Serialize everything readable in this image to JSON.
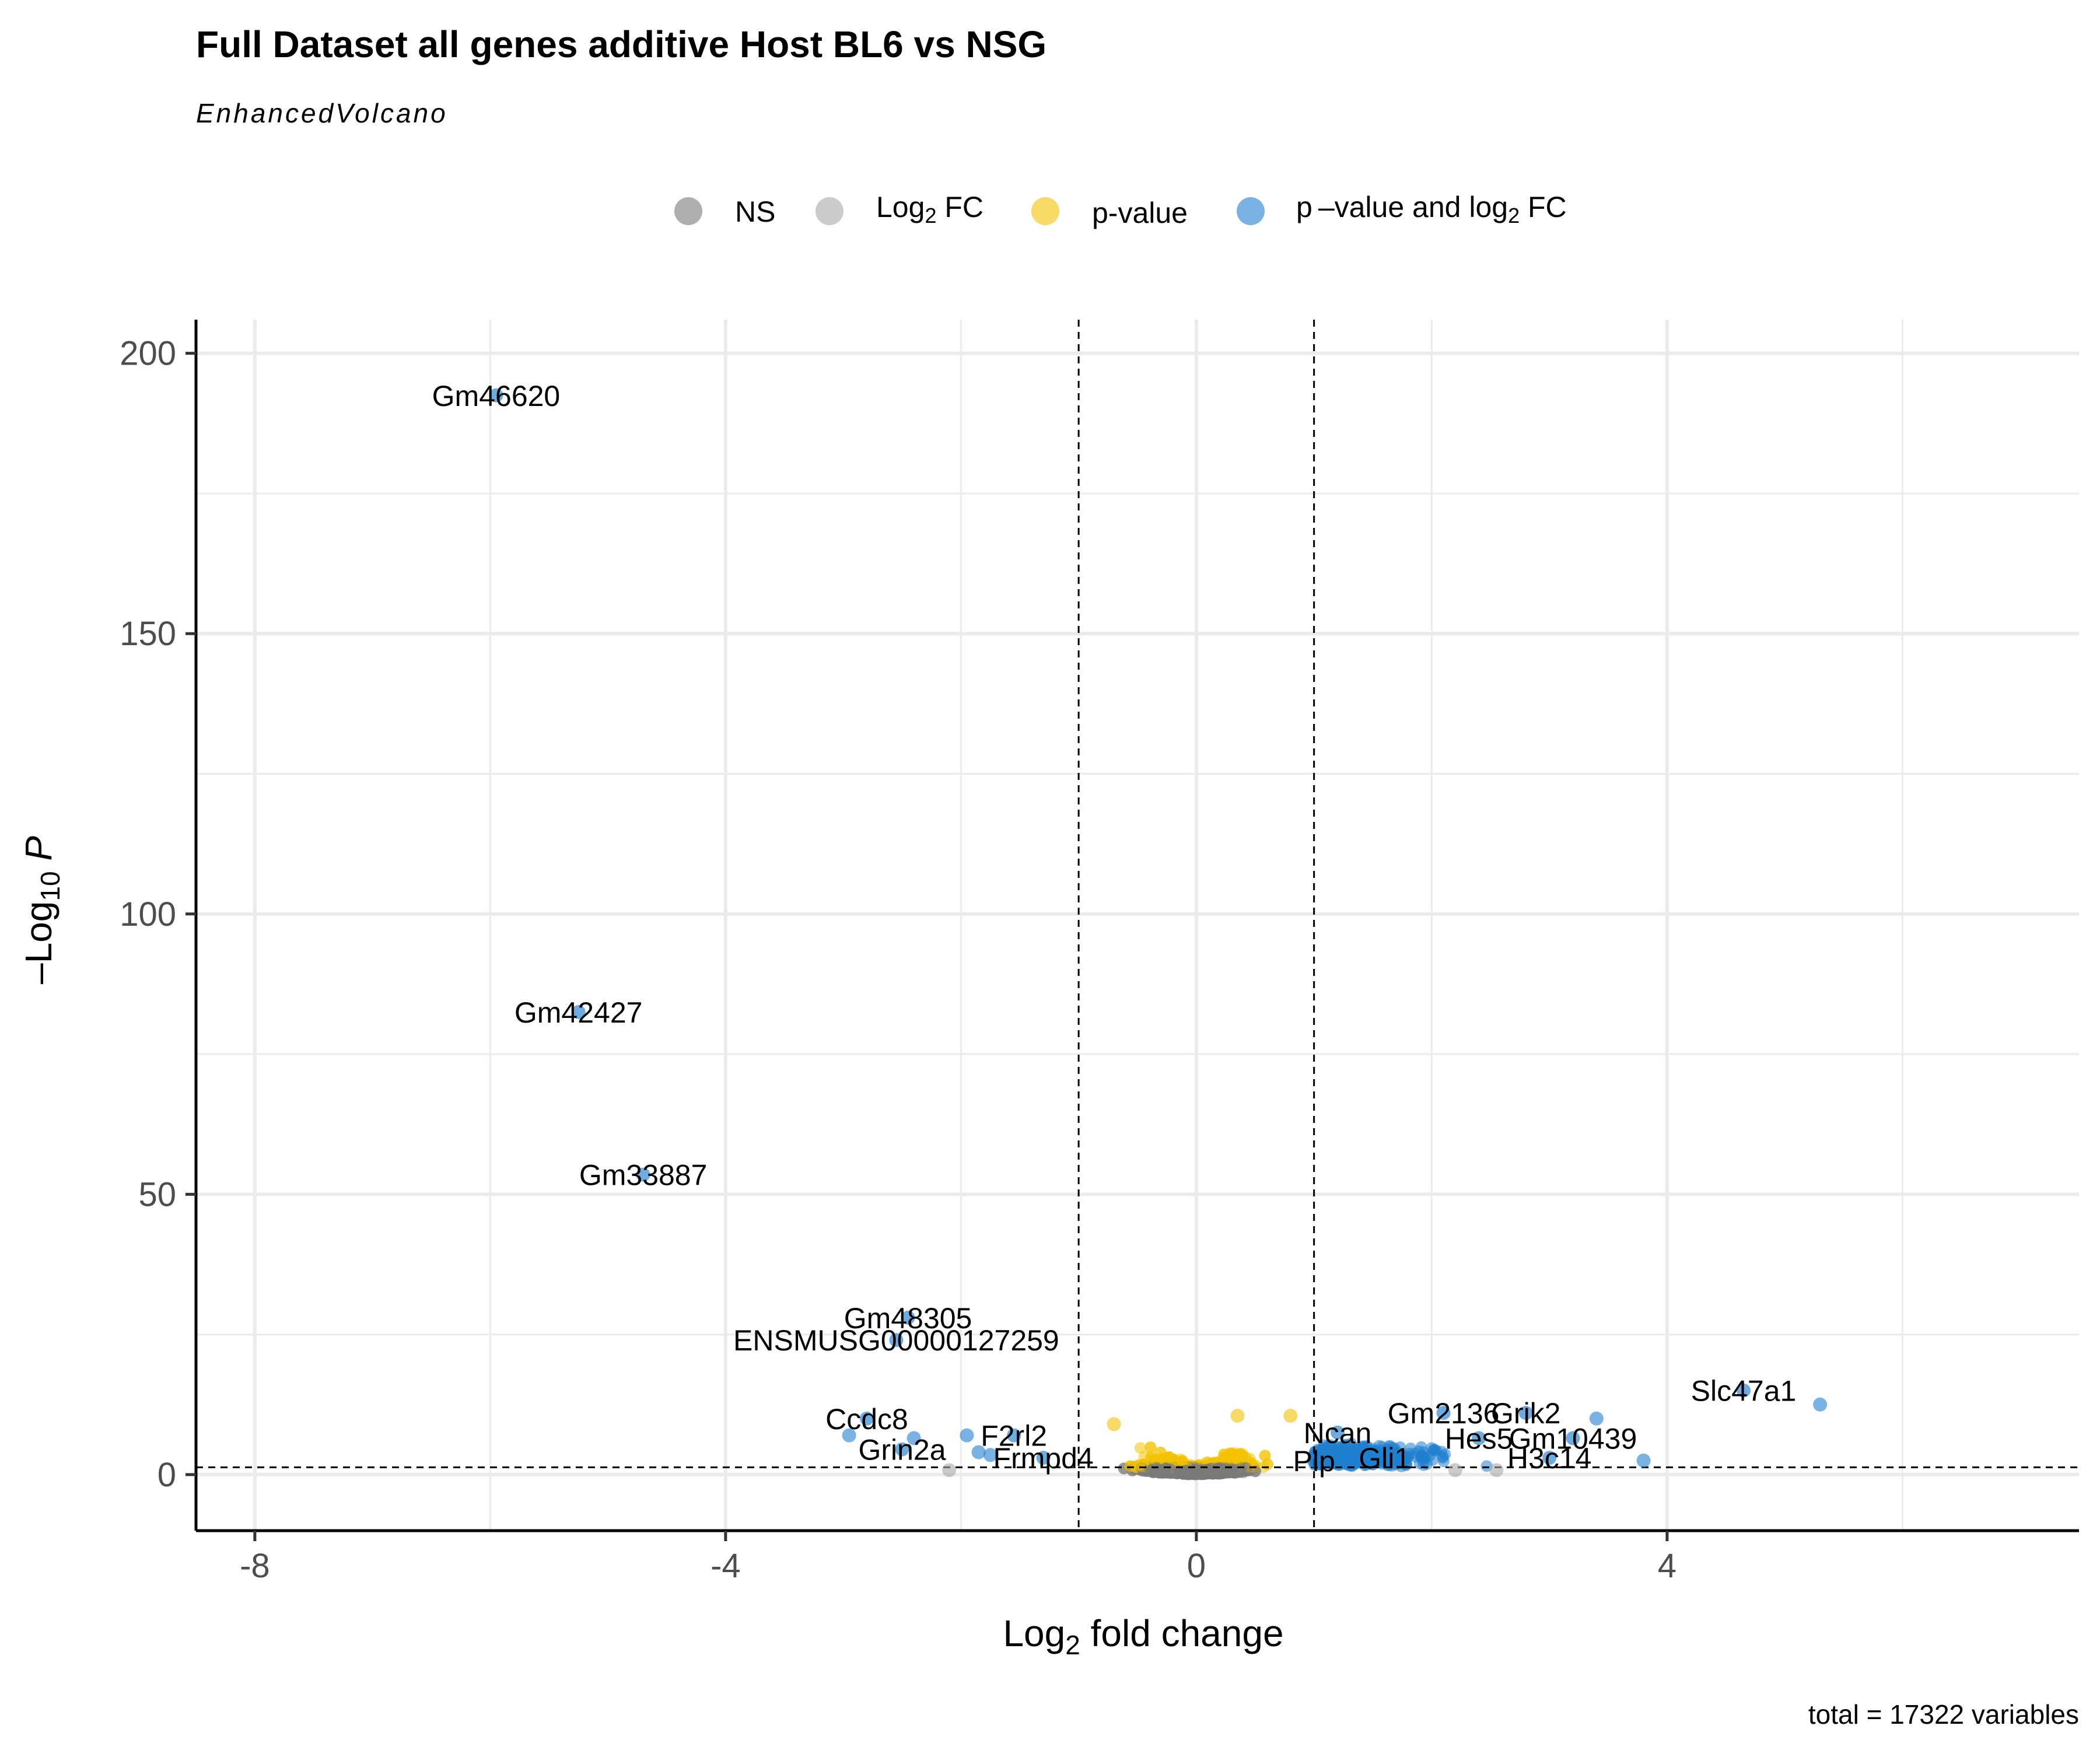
{
  "chart_data": {
    "type": "scatter",
    "title": "Full Dataset all genes additive Host BL6 vs NSG",
    "subtitle": "EnhancedVolcano",
    "xlabel": {
      "pre": "Log",
      "sub": "2",
      "post": " fold change"
    },
    "ylabel": {
      "pre": "–Log",
      "sub": "10",
      "post": " P"
    },
    "caption": "total = 17322 variables",
    "xlim": [
      -8.5,
      7.5
    ],
    "ylim": [
      -10,
      206
    ],
    "x_ticks": [
      -8,
      -4,
      0,
      4
    ],
    "x_tick_labels": [
      "-8",
      "-4",
      "0",
      "4"
    ],
    "y_ticks": [
      0,
      50,
      100,
      150,
      200
    ],
    "y_tick_labels": [
      "0",
      "50",
      "100",
      "150",
      "200"
    ],
    "grid": true,
    "fc_cutoff": 1,
    "p_cutoff_neglog10": 1.3,
    "legend_position": "top",
    "legend": [
      {
        "key": "ns",
        "label": "NS",
        "color": "#7a7a7a"
      },
      {
        "key": "fc",
        "label": {
          "pre": "Log",
          "sub": "2",
          "post": " FC"
        },
        "color": "#a8a8a8"
      },
      {
        "key": "p",
        "label": "p-value",
        "color": "#f2c300"
      },
      {
        "key": "both",
        "label": {
          "pre": "p –value and log",
          "sub": "2",
          "post": " FC"
        },
        "color": "#1f7fd0"
      }
    ],
    "labeled_points": [
      {
        "label": "Gm46620",
        "x": -5.95,
        "y": 192.5,
        "category": "both"
      },
      {
        "label": "Gm42427",
        "x": -5.25,
        "y": 82.5,
        "category": "both"
      },
      {
        "label": "Gm33887",
        "x": -4.7,
        "y": 53.5,
        "category": "both"
      },
      {
        "label": "Gm48305",
        "x": -2.45,
        "y": 28,
        "category": "both"
      },
      {
        "label": "ENSMUSG00000127259",
        "x": -2.55,
        "y": 24,
        "category": "both"
      },
      {
        "label": "Ccdc8",
        "x": -2.8,
        "y": 10,
        "category": "both"
      },
      {
        "label": "Grin2a",
        "x": -2.5,
        "y": 4.5,
        "category": "both"
      },
      {
        "label": "F2rl2",
        "x": -1.55,
        "y": 7,
        "category": "both"
      },
      {
        "label": "Frmpd4",
        "x": -1.3,
        "y": 3,
        "category": "both"
      },
      {
        "label": "Ncan",
        "x": 1.2,
        "y": 7.5,
        "category": "both"
      },
      {
        "label": "Plp",
        "x": 1.0,
        "y": 2.5,
        "category": "both"
      },
      {
        "label": "Gli1",
        "x": 1.6,
        "y": 3,
        "category": "both"
      },
      {
        "label": "Gm2136",
        "x": 2.1,
        "y": 11,
        "category": "both"
      },
      {
        "label": "Grik2",
        "x": 2.8,
        "y": 11,
        "category": "both"
      },
      {
        "label": "Hes5",
        "x": 2.4,
        "y": 6.5,
        "category": "both"
      },
      {
        "label": "Gm10439",
        "x": 3.2,
        "y": 6.5,
        "category": "both"
      },
      {
        "label": "H3c14",
        "x": 3.0,
        "y": 3,
        "category": "both"
      },
      {
        "label": "Slc47a1",
        "x": 4.65,
        "y": 15,
        "category": "both"
      }
    ],
    "other_points": [
      {
        "x": 5.3,
        "y": 12.5,
        "category": "both"
      },
      {
        "x": 3.8,
        "y": 2.5,
        "category": "both"
      },
      {
        "x": 3.4,
        "y": 10,
        "category": "both"
      },
      {
        "x": -2.95,
        "y": 7,
        "category": "both"
      },
      {
        "x": -2.4,
        "y": 6.5,
        "category": "both"
      },
      {
        "x": -1.95,
        "y": 7,
        "category": "both"
      },
      {
        "x": -1.85,
        "y": 4,
        "category": "both"
      },
      {
        "x": -1.75,
        "y": 3.5,
        "category": "both"
      },
      {
        "x": 0.35,
        "y": 10.5,
        "category": "p"
      },
      {
        "x": 0.8,
        "y": 10.5,
        "category": "p"
      },
      {
        "x": -0.7,
        "y": 9,
        "category": "p"
      },
      {
        "x": 2.55,
        "y": 0.8,
        "category": "fc"
      },
      {
        "x": 2.2,
        "y": 0.8,
        "category": "fc"
      },
      {
        "x": -2.1,
        "y": 0.8,
        "category": "fc"
      }
    ],
    "dense_cloud": "approximately 17,300 additional unlabeled genes clustered near x = 0 and low y"
  }
}
